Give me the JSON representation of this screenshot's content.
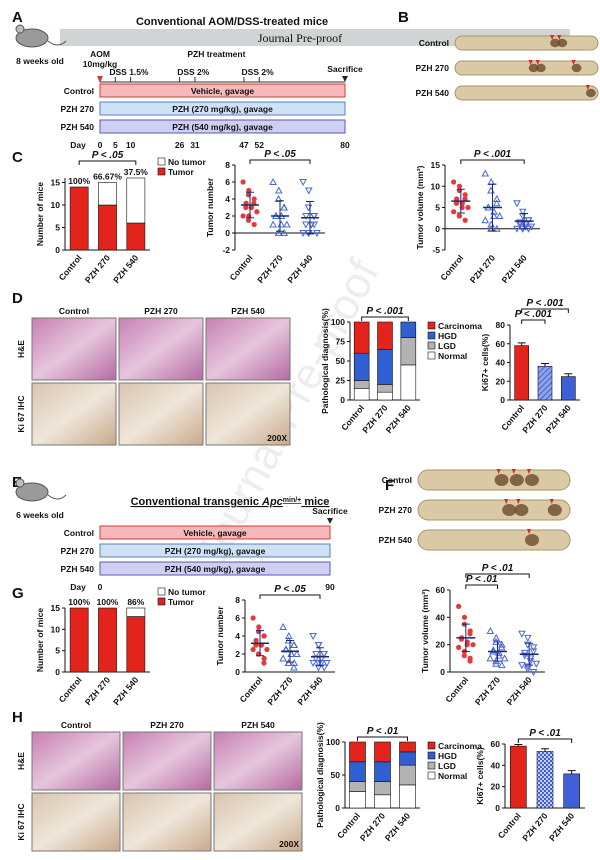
{
  "watermark": "Journal Pre-proof",
  "panel_labels": [
    "A",
    "B",
    "C",
    "D",
    "E",
    "F",
    "G",
    "H"
  ],
  "timeline_a": {
    "title": "Conventional AOM/DSS-treated mice",
    "age": "8 weeks old",
    "aom": [
      "AOM",
      "10mg/kg"
    ],
    "treatment_label": "PZH treatment",
    "endpoint": "Sacrifice",
    "dss": [
      {
        "label": "DSS 1.5%",
        "days": [
          5,
          10
        ]
      },
      {
        "label": "DSS 2%",
        "days": [
          26,
          31
        ]
      },
      {
        "label": "DSS 2%",
        "days": [
          47,
          52
        ]
      }
    ],
    "rows": [
      {
        "group": "Control",
        "regimen": "Vehicle, gavage"
      },
      {
        "group": "PZH 270",
        "regimen": "PZH (270 mg/kg), gavage"
      },
      {
        "group": "PZH 540",
        "regimen": "PZH (540 mg/kg), gavage"
      }
    ],
    "day_label": "Day",
    "days": [
      0,
      5,
      10,
      26,
      31,
      47,
      52,
      80
    ]
  },
  "timeline_e": {
    "title": [
      "Conventional transgenic ",
      "Apc",
      "min/+",
      " mice"
    ],
    "age": "6 weeks old",
    "endpoint": "Sacrifice",
    "rows": [
      {
        "group": "Control",
        "regimen": "Vehicle, gavage"
      },
      {
        "group": "PZH 270",
        "regimen": "PZH (270 mg/kg), gavage"
      },
      {
        "group": "PZH 540",
        "regimen": "PZH (540 mg/kg), gavage"
      }
    ],
    "day_label": "Day",
    "days": [
      0,
      90
    ]
  },
  "image_b": {
    "rows": [
      "Control",
      "PZH 270",
      "PZH 540"
    ]
  },
  "image_d": {
    "columns": [
      "Control",
      "PZH 270",
      "PZH 540"
    ],
    "rows": [
      "H&E",
      "Ki 67 IHC"
    ],
    "magnification": "200X"
  },
  "image_f": {
    "rows": [
      "Control",
      "PZH 270",
      "PZH 540"
    ]
  },
  "image_h": {
    "columns": [
      "Control",
      "PZH 270",
      "PZH 540"
    ],
    "rows": [
      "H&E",
      "Ki 67 IHC"
    ],
    "magnification": "200X"
  },
  "chart_data": [
    {
      "type": "stack",
      "ylabel": "Number of mice",
      "categories": [
        "Control",
        "PZH 270",
        "PZH 540"
      ],
      "series": [
        {
          "name": "Tumor",
          "color": "#e3241c",
          "values": [
            14,
            10,
            6
          ]
        },
        {
          "name": "No tumor",
          "color": "#ffffff",
          "values": [
            0,
            5,
            10
          ]
        }
      ],
      "annotations": [
        "100%",
        "66.67%",
        "37.5%"
      ],
      "ylim": [
        0,
        16
      ],
      "yticks": [
        0,
        5,
        10,
        15
      ],
      "legend": "right",
      "significance": [
        {
          "label": "P < .05",
          "between": [
            "Control",
            "PZH 540"
          ]
        }
      ]
    },
    {
      "type": "dot",
      "ylabel": "Tumor number",
      "categories": [
        "Control",
        "PZH 270",
        "PZH 540"
      ],
      "ylim": [
        -2,
        8
      ],
      "yticks": [
        -2,
        0,
        2,
        4,
        6,
        8
      ],
      "groups": [
        {
          "color": "#e33a3a",
          "marker": "circle",
          "values": [
            6,
            5,
            4.5,
            4,
            3.5,
            3.5,
            3,
            3,
            3,
            2.5,
            2,
            2,
            1.5,
            1
          ],
          "mean": 3.3,
          "sd": 1.5
        },
        {
          "color": "#4a67d6",
          "marker": "triangle",
          "values": [
            6,
            5,
            4,
            3,
            3,
            2,
            2,
            2,
            1,
            1,
            1,
            0,
            0,
            0
          ],
          "mean": 2,
          "sd": 1.8
        },
        {
          "color": "#4a67d6",
          "marker": "triangle-down",
          "values": [
            6,
            5,
            3,
            2,
            2,
            2,
            1,
            1,
            1,
            0,
            0,
            0,
            0,
            1
          ],
          "mean": 1.8,
          "sd": 1.9
        }
      ],
      "significance": [
        {
          "label": "P < .05",
          "between": [
            "Control",
            "PZH 540"
          ]
        }
      ]
    },
    {
      "type": "dot",
      "ylabel": "Tumor volume (mm³)",
      "categories": [
        "Control",
        "PZH 270",
        "PZH 540"
      ],
      "ylim": [
        -5,
        15
      ],
      "yticks": [
        -5,
        0,
        5,
        10,
        15
      ],
      "groups": [
        {
          "color": "#e33a3a",
          "marker": "circle",
          "values": [
            11,
            10,
            9,
            8,
            7,
            7,
            6,
            6,
            5,
            5,
            4,
            3,
            3,
            2
          ],
          "mean": 6.5,
          "sd": 2.8
        },
        {
          "color": "#4a67d6",
          "marker": "triangle",
          "values": [
            13,
            11,
            9,
            7,
            6,
            5,
            5,
            4,
            3,
            3,
            2,
            1,
            0,
            0
          ],
          "mean": 5,
          "sd": 5.5
        },
        {
          "color": "#4a67d6",
          "marker": "triangle-down",
          "values": [
            6,
            4,
            3,
            2,
            2,
            1.5,
            1,
            1,
            0.5,
            0.5,
            0,
            0,
            0,
            0
          ],
          "mean": 1.8,
          "sd": 1.8
        }
      ],
      "significance": [
        {
          "label": "P < .001",
          "between": [
            "Control",
            "PZH 540"
          ]
        }
      ]
    },
    {
      "type": "stack",
      "ylabel": "Pathological diagnosis(%)",
      "categories": [
        "Control",
        "PZH 270",
        "PZH 540"
      ],
      "series": [
        {
          "name": "Normal",
          "color": "#ffffff",
          "values": [
            15,
            10,
            45
          ]
        },
        {
          "name": "LGD",
          "color": "#b3b3b3",
          "values": [
            10,
            10,
            35
          ]
        },
        {
          "name": "HGD",
          "color": "#2f5fd0",
          "values": [
            35,
            45,
            20
          ]
        },
        {
          "name": "Carcinoma",
          "color": "#e3241c",
          "values": [
            40,
            35,
            0
          ]
        }
      ],
      "ylim": [
        0,
        100
      ],
      "yticks": [
        0,
        25,
        50,
        75,
        100
      ],
      "legend": "right",
      "significance": [
        {
          "label": "P < .001",
          "between": [
            "Control",
            "PZH 540"
          ]
        }
      ]
    },
    {
      "type": "bar",
      "ylabel": "Ki67+ cells(%)",
      "categories": [
        "Control",
        "PZH 270",
        "PZH 540"
      ],
      "values": [
        58,
        36,
        25
      ],
      "errors": [
        3,
        3,
        3
      ],
      "colors": [
        "#e3241c",
        "#4a67d6",
        "#3f5fd6"
      ],
      "patterns": [
        "solid",
        "hatch",
        "solid"
      ],
      "ylim": [
        0,
        80
      ],
      "yticks": [
        0,
        20,
        40,
        60,
        80
      ],
      "significance": [
        {
          "label": "P < .001",
          "between": [
            "Control",
            "PZH 540"
          ]
        },
        {
          "label": "P < .001",
          "between": [
            "Control",
            "PZH 270"
          ]
        }
      ]
    },
    {
      "type": "stack",
      "ylabel": "Number of mice",
      "categories": [
        "Control",
        "PZH 270",
        "PZH 540"
      ],
      "series": [
        {
          "name": "Tumor",
          "color": "#e3241c",
          "values": [
            15,
            15,
            13
          ]
        },
        {
          "name": "No tumor",
          "color": "#ffffff",
          "values": [
            0,
            0,
            2
          ]
        }
      ],
      "annotations": [
        "100%",
        "100%",
        "86%"
      ],
      "ylim": [
        0,
        15
      ],
      "yticks": [
        0,
        5,
        10,
        15
      ],
      "legend": "right",
      "significance": []
    },
    {
      "type": "dot",
      "ylabel": "Tumor number",
      "categories": [
        "Control",
        "PZH 270",
        "PZH 540"
      ],
      "ylim": [
        0,
        8
      ],
      "yticks": [
        0,
        2,
        4,
        6,
        8
      ],
      "groups": [
        {
          "color": "#e33a3a",
          "marker": "circle",
          "values": [
            6,
            5,
            4.5,
            4,
            4,
            3.5,
            3,
            3,
            3,
            2.5,
            2.5,
            2,
            2,
            1.5,
            1,
            3
          ],
          "mean": 3.2,
          "sd": 1.4
        },
        {
          "color": "#4a67d6",
          "marker": "triangle",
          "values": [
            5,
            4,
            3.5,
            3,
            3,
            2.5,
            2.5,
            2,
            2,
            2,
            1.5,
            1,
            1,
            1,
            0.5
          ],
          "mean": 2.3,
          "sd": 1.2
        },
        {
          "color": "#4a67d6",
          "marker": "triangle-down",
          "values": [
            4,
            3,
            3,
            2,
            2,
            2,
            1.5,
            1.5,
            1,
            1,
            1,
            1,
            0.5,
            0.5
          ],
          "mean": 1.7,
          "sd": 1
        }
      ],
      "significance": [
        {
          "label": "P < .05",
          "between": [
            "Control",
            "PZH 540"
          ]
        }
      ]
    },
    {
      "type": "dot",
      "ylabel": "Tumor volume (mm³)",
      "categories": [
        "Control",
        "PZH 270",
        "PZH 540"
      ],
      "ylim": [
        0,
        60
      ],
      "yticks": [
        0,
        20,
        40,
        60
      ],
      "groups": [
        {
          "color": "#e33a3a",
          "marker": "circle",
          "values": [
            48,
            40,
            35,
            30,
            28,
            25,
            24,
            22,
            20,
            20,
            18,
            15,
            12,
            10,
            8
          ],
          "mean": 25,
          "sd": 10
        },
        {
          "color": "#4a67d6",
          "marker": "triangle",
          "values": [
            30,
            25,
            22,
            20,
            18,
            16,
            15,
            14,
            12,
            10,
            10,
            8,
            6,
            5
          ],
          "mean": 15,
          "sd": 7
        },
        {
          "color": "#4a67d6",
          "marker": "triangle-down",
          "values": [
            28,
            25,
            20,
            18,
            15,
            14,
            12,
            10,
            8,
            6,
            5,
            4,
            2,
            0
          ],
          "mean": 13,
          "sd": 8
        }
      ],
      "significance": [
        {
          "label": "P < .01",
          "between": [
            "Control",
            "PZH 540"
          ]
        },
        {
          "label": "P < .01",
          "between": [
            "Control",
            "PZH 270"
          ]
        }
      ]
    },
    {
      "type": "stack",
      "ylabel": "Pathological diagnosis(%)",
      "categories": [
        "Control",
        "PZH 270",
        "PZH 540"
      ],
      "series": [
        {
          "name": "Normal",
          "color": "#ffffff",
          "values": [
            25,
            20,
            35
          ]
        },
        {
          "name": "LGD",
          "color": "#b3b3b3",
          "values": [
            15,
            20,
            30
          ]
        },
        {
          "name": "HGD",
          "color": "#2f5fd0",
          "values": [
            30,
            30,
            20
          ]
        },
        {
          "name": "Carcinoma",
          "color": "#e3241c",
          "values": [
            30,
            30,
            15
          ]
        }
      ],
      "ylim": [
        0,
        100
      ],
      "yticks": [
        0,
        50,
        100
      ],
      "legend": "right",
      "significance": [
        {
          "label": "P < .01",
          "between": [
            "Control",
            "PZH 540"
          ]
        }
      ]
    },
    {
      "type": "bar",
      "ylabel": "Ki67+ cells(%)",
      "categories": [
        "Control",
        "PZH 270",
        "PZH 540"
      ],
      "values": [
        58,
        53,
        32
      ],
      "errors": [
        1.5,
        2.5,
        3
      ],
      "colors": [
        "#e3241c",
        "#4a67d6",
        "#3f5fd6"
      ],
      "patterns": [
        "solid",
        "check",
        "solid"
      ],
      "ylim": [
        0,
        60
      ],
      "yticks": [
        0,
        20,
        40,
        60
      ],
      "significance": [
        {
          "label": "P < .01",
          "between": [
            "Control",
            "PZH 540"
          ]
        }
      ]
    }
  ]
}
